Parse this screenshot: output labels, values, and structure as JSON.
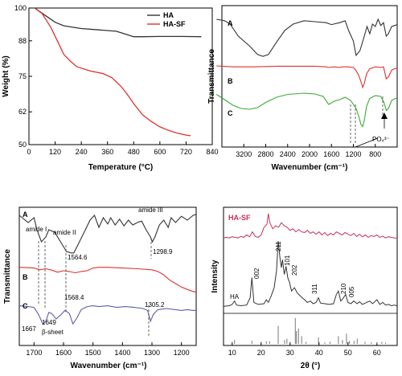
{
  "chart_data": [
    {
      "id": "tga",
      "type": "line",
      "title": "",
      "xlabel": "Temperature (°C)",
      "ylabel": "Weight (%)",
      "xlim": [
        0,
        840
      ],
      "ylim": [
        50,
        100
      ],
      "xticks": [
        "0",
        "120",
        "240",
        "360",
        "480",
        "600",
        "720",
        "840"
      ],
      "yticks": [
        "100",
        "88",
        "75",
        "62",
        "50"
      ],
      "grid": false,
      "legend_position": "top-right",
      "series": [
        {
          "name": "HA",
          "color": "#333333",
          "x": [
            30,
            80,
            120,
            160,
            240,
            320,
            400,
            440,
            480,
            520,
            600,
            700,
            790
          ],
          "y": [
            99.8,
            97,
            94.8,
            93.5,
            92.5,
            92,
            91.5,
            90.5,
            89.5,
            89.5,
            89.6,
            89.6,
            89.5
          ]
        },
        {
          "name": "HA-SF",
          "color": "#e0312b",
          "x": [
            30,
            60,
            100,
            130,
            160,
            190,
            220,
            280,
            340,
            380,
            420,
            450,
            480,
            520,
            560,
            600,
            640,
            680,
            720,
            740
          ],
          "y": [
            99.8,
            98,
            93,
            88,
            83,
            80.5,
            78.5,
            77,
            76,
            74.5,
            71.5,
            68.5,
            65,
            61,
            58.5,
            56.5,
            55.2,
            54.2,
            53.5,
            53.3
          ]
        }
      ]
    },
    {
      "id": "ftir-full",
      "type": "line",
      "title": "",
      "xlabel": "Wavenumber (cm⁻¹)",
      "ylabel": "Transmittance",
      "xlim": [
        3600,
        400
      ],
      "xticks": [
        "3200",
        "2800",
        "2400",
        "2000",
        "1600",
        "1200",
        "800"
      ],
      "grid": false,
      "series": [
        {
          "name": "A",
          "color": "#333333",
          "offset": 0,
          "x": [
            3700,
            3550,
            3450,
            3300,
            3100,
            2950,
            2850,
            2750,
            2600,
            2450,
            2300,
            2100,
            1900,
            1700,
            1600,
            1450,
            1350,
            1280,
            1200,
            1150,
            1080,
            1000,
            950,
            900,
            850,
            800,
            750,
            700,
            650,
            600,
            560,
            500,
            450,
            400
          ],
          "y": [
            0.85,
            0.82,
            0.75,
            0.5,
            0.3,
            0.12,
            0.08,
            0.12,
            0.38,
            0.62,
            0.75,
            0.82,
            0.8,
            0.78,
            0.74,
            0.78,
            0.82,
            0.6,
            0.4,
            0.1,
            0.2,
            0.5,
            0.7,
            0.55,
            0.75,
            0.7,
            0.85,
            0.72,
            0.78,
            0.5,
            0.55,
            0.7,
            0.72,
            0.74
          ]
        },
        {
          "name": "B",
          "color": "#e0312b",
          "offset": 0,
          "x": [
            3700,
            3400,
            3000,
            2600,
            2200,
            1900,
            1700,
            1650,
            1550,
            1450,
            1400,
            1300,
            1200,
            1150,
            1100,
            1050,
            1030,
            1000,
            960,
            900,
            800,
            700,
            650,
            600,
            560,
            500,
            450,
            400
          ],
          "y": [
            0.75,
            0.72,
            0.72,
            0.74,
            0.74,
            0.74,
            0.72,
            0.7,
            0.72,
            0.7,
            0.72,
            0.72,
            0.7,
            0.6,
            0.45,
            0.2,
            0.08,
            0.2,
            0.5,
            0.66,
            0.72,
            0.7,
            0.72,
            0.35,
            0.4,
            0.62,
            0.66,
            0.68
          ]
        },
        {
          "name": "C",
          "color": "#3aaa35",
          "offset": 0,
          "x": [
            3700,
            3550,
            3400,
            3250,
            3100,
            2950,
            2800,
            2600,
            2400,
            2100,
            1900,
            1750,
            1650,
            1550,
            1450,
            1350,
            1250,
            1150,
            1100,
            1060,
            1030,
            1000,
            960,
            900,
            800,
            700,
            640,
            600,
            560,
            500,
            450,
            400
          ],
          "y": [
            0.85,
            0.72,
            0.58,
            0.5,
            0.48,
            0.52,
            0.65,
            0.78,
            0.85,
            0.88,
            0.86,
            0.8,
            0.6,
            0.68,
            0.72,
            0.78,
            0.7,
            0.5,
            0.3,
            0.1,
            0.05,
            0.2,
            0.55,
            0.75,
            0.82,
            0.8,
            0.65,
            0.45,
            0.5,
            0.7,
            0.74,
            0.76
          ]
        }
      ],
      "annotations": [
        "PO₄³⁻"
      ]
    },
    {
      "id": "ftir-zoom",
      "type": "line",
      "title": "",
      "xlabel": "Wavenumber (cm⁻¹)",
      "ylabel": "Transmittance",
      "xlim": [
        1750,
        1150
      ],
      "xticks": [
        "1700",
        "1600",
        "1500",
        "1400",
        "1300",
        "1200"
      ],
      "grid": false,
      "series": [
        {
          "name": "A",
          "color": "#333333",
          "x": [
            1750,
            1720,
            1700,
            1690,
            1675,
            1660,
            1650,
            1630,
            1610,
            1590,
            1575,
            1565,
            1550,
            1530,
            1510,
            1495,
            1480,
            1465,
            1450,
            1440,
            1425,
            1410,
            1395,
            1380,
            1365,
            1350,
            1335,
            1320,
            1305,
            1299,
            1290,
            1275,
            1260,
            1245,
            1235,
            1220,
            1200,
            1180,
            1160,
            1150
          ],
          "y": [
            0.9,
            0.75,
            0.85,
            0.6,
            0.35,
            0.45,
            0.6,
            0.55,
            0.35,
            0.15,
            0.12,
            0.12,
            0.3,
            0.55,
            0.8,
            0.9,
            0.65,
            0.85,
            0.72,
            0.85,
            0.7,
            0.82,
            0.68,
            0.8,
            0.7,
            0.75,
            0.78,
            0.6,
            0.45,
            0.35,
            0.45,
            0.7,
            0.8,
            0.65,
            0.85,
            0.75,
            0.88,
            0.8,
            0.9,
            0.92
          ]
        },
        {
          "name": "B",
          "color": "#e0312b",
          "x": [
            1750,
            1700,
            1680,
            1660,
            1640,
            1620,
            1600,
            1580,
            1560,
            1540,
            1520,
            1500,
            1480,
            1450,
            1400,
            1350,
            1300,
            1280,
            1260,
            1240,
            1220,
            1200,
            1180,
            1160,
            1150
          ],
          "y": [
            0.82,
            0.8,
            0.75,
            0.78,
            0.74,
            0.68,
            0.72,
            0.7,
            0.66,
            0.7,
            0.72,
            0.8,
            0.82,
            0.82,
            0.8,
            0.78,
            0.75,
            0.7,
            0.6,
            0.45,
            0.35,
            0.25,
            0.18,
            0.12,
            0.1
          ]
        },
        {
          "name": "C",
          "color": "#5b5ea6",
          "x": [
            1750,
            1720,
            1700,
            1685,
            1670,
            1660,
            1650,
            1640,
            1625,
            1610,
            1595,
            1580,
            1568,
            1555,
            1540,
            1520,
            1500,
            1480,
            1450,
            1420,
            1390,
            1360,
            1330,
            1315,
            1305,
            1295,
            1280,
            1250,
            1220,
            1200,
            1180,
            1160,
            1150
          ],
          "y": [
            0.82,
            0.8,
            0.78,
            0.6,
            0.35,
            0.42,
            0.65,
            0.62,
            0.48,
            0.58,
            0.7,
            0.62,
            0.35,
            0.5,
            0.72,
            0.8,
            0.82,
            0.8,
            0.82,
            0.78,
            0.8,
            0.78,
            0.75,
            0.7,
            0.42,
            0.6,
            0.72,
            0.75,
            0.72,
            0.7,
            0.72,
            0.7,
            0.7
          ]
        }
      ],
      "annotations": [
        "amide I",
        "amide II",
        "amide III",
        "1298.9",
        "1564.6",
        "1568.4",
        "1305.2",
        "1667",
        "1649",
        "β-sheet"
      ]
    },
    {
      "id": "xrd",
      "type": "line",
      "title": "",
      "xlabel": "2θ (°)",
      "ylabel": "Intensity",
      "xlim": [
        7,
        67
      ],
      "xticks": [
        "10",
        "20",
        "30",
        "40",
        "50",
        "60"
      ],
      "grid": false,
      "series": [
        {
          "name": "HA-SF",
          "color": "#c8325a",
          "x": [
            7,
            8,
            9,
            10,
            11,
            12,
            13,
            14,
            15,
            16,
            17,
            18,
            19,
            20,
            21,
            22,
            22.5,
            23,
            24,
            25,
            26,
            27,
            28,
            29,
            30,
            31,
            32,
            33,
            34,
            35,
            36,
            37,
            38,
            39,
            40,
            41,
            42,
            43,
            44,
            45,
            46,
            47,
            48,
            49,
            50,
            51,
            52,
            53,
            54,
            55,
            56,
            57,
            58,
            59,
            60,
            61,
            62,
            63,
            64,
            65,
            66,
            67
          ],
          "y": [
            0.1,
            0.12,
            0.1,
            0.14,
            0.12,
            0.1,
            0.15,
            0.12,
            0.2,
            0.14,
            0.3,
            0.15,
            0.12,
            0.2,
            0.45,
            0.55,
            0.9,
            0.6,
            0.4,
            0.5,
            0.45,
            0.6,
            0.5,
            0.45,
            0.35,
            0.4,
            0.3,
            0.38,
            0.3,
            0.28,
            0.35,
            0.25,
            0.3,
            0.22,
            0.3,
            0.2,
            0.28,
            0.18,
            0.25,
            0.2,
            0.3,
            0.25,
            0.2,
            0.28,
            0.22,
            0.18,
            0.25,
            0.15,
            0.22,
            0.14,
            0.2,
            0.12,
            0.18,
            0.15,
            0.2,
            0.12,
            0.16,
            0.1,
            0.14,
            0.12,
            0.1,
            0.1
          ]
        },
        {
          "name": "HA",
          "color": "#333333",
          "x": [
            7,
            9,
            10,
            10.8,
            11.5,
            13,
            15,
            16.2,
            16.8,
            17.5,
            19,
            21,
            21.8,
            22.5,
            23.5,
            24.5,
            25.3,
            25.9,
            26.5,
            27,
            27.4,
            28,
            28.6,
            29.2,
            29.8,
            30.5,
            31.5,
            32.5,
            33.5,
            34.2,
            35,
            36,
            37,
            38,
            39,
            39.8,
            40.5,
            42,
            43.5,
            45,
            46,
            46.7,
            47.5,
            48.3,
            49.2,
            50,
            51,
            52,
            53.2,
            54,
            55,
            56,
            57.5,
            58.5,
            60,
            61,
            62,
            63,
            64,
            65,
            66,
            67
          ],
          "y": [
            0.02,
            0.03,
            0.05,
            0.1,
            0.04,
            0.03,
            0.04,
            0.15,
            0.45,
            0.08,
            0.05,
            0.06,
            0.12,
            0.08,
            0.18,
            0.3,
            0.55,
            1.0,
            0.75,
            0.6,
            0.72,
            0.5,
            0.62,
            0.45,
            0.38,
            0.25,
            0.3,
            0.22,
            0.18,
            0.15,
            0.12,
            0.08,
            0.1,
            0.06,
            0.08,
            0.15,
            0.07,
            0.06,
            0.05,
            0.06,
            0.2,
            0.25,
            0.1,
            0.14,
            0.2,
            0.08,
            0.06,
            0.1,
            0.06,
            0.09,
            0.05,
            0.07,
            0.1,
            0.06,
            0.12,
            0.05,
            0.08,
            0.04,
            0.05,
            0.03,
            0.04,
            0.03
          ]
        }
      ],
      "reference_peaks": {
        "x": [
          10.8,
          16.8,
          21.8,
          22.9,
          25.9,
          28.1,
          28.9,
          31.8,
          32.2,
          32.9,
          34.0,
          35.5,
          39.8,
          42.0,
          43.8,
          46.7,
          48.1,
          49.5,
          50.5,
          52.1,
          53.2,
          55.9,
          58.1,
          60.0,
          61.7,
          63.0
        ],
        "h": [
          0.15,
          0.12,
          0.1,
          0.1,
          0.7,
          0.15,
          0.2,
          1.0,
          0.5,
          0.6,
          0.3,
          0.08,
          0.25,
          0.06,
          0.08,
          0.3,
          0.15,
          0.4,
          0.12,
          0.12,
          0.2,
          0.08,
          0.06,
          0.06,
          0.08,
          0.05
        ]
      },
      "annotations": [
        "HA",
        "002",
        "211",
        "101",
        "202",
        "311",
        "210",
        "005"
      ]
    }
  ]
}
